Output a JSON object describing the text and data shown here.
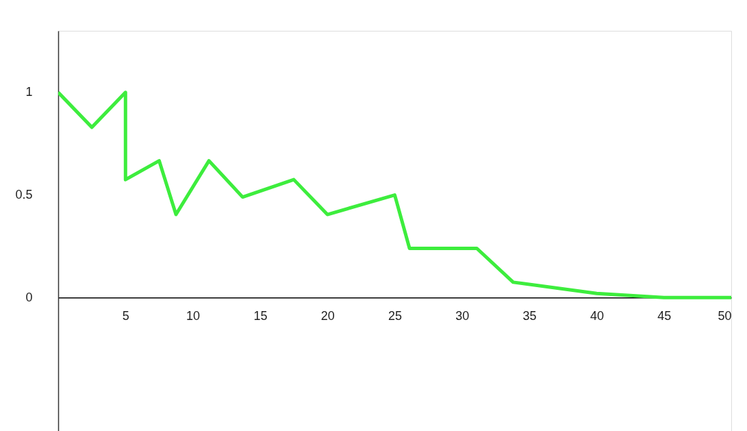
{
  "chart_data": {
    "type": "line",
    "x": [
      0,
      2.5,
      5,
      5,
      7.5,
      8.75,
      11.2,
      13.7,
      17.5,
      20,
      25,
      26.1,
      31.1,
      33.8,
      40,
      45,
      50
    ],
    "series": [
      {
        "color": "#3ded3d",
        "values": [
          1,
          0.83,
          1,
          0.575,
          0.667,
          0.405,
          0.667,
          0.49,
          0.575,
          0.405,
          0.5,
          0.24,
          0.24,
          0.075,
          0.02,
          0,
          0
        ]
      }
    ],
    "xlim": [
      0,
      50
    ],
    "ylim": [
      -0.65,
      1.3
    ],
    "xticks": [
      5,
      10,
      15,
      20,
      25,
      30,
      35,
      40,
      45,
      50
    ],
    "yticks": [
      0,
      0.5,
      1
    ],
    "grid": false,
    "marker": "none",
    "line_style": "solid"
  }
}
